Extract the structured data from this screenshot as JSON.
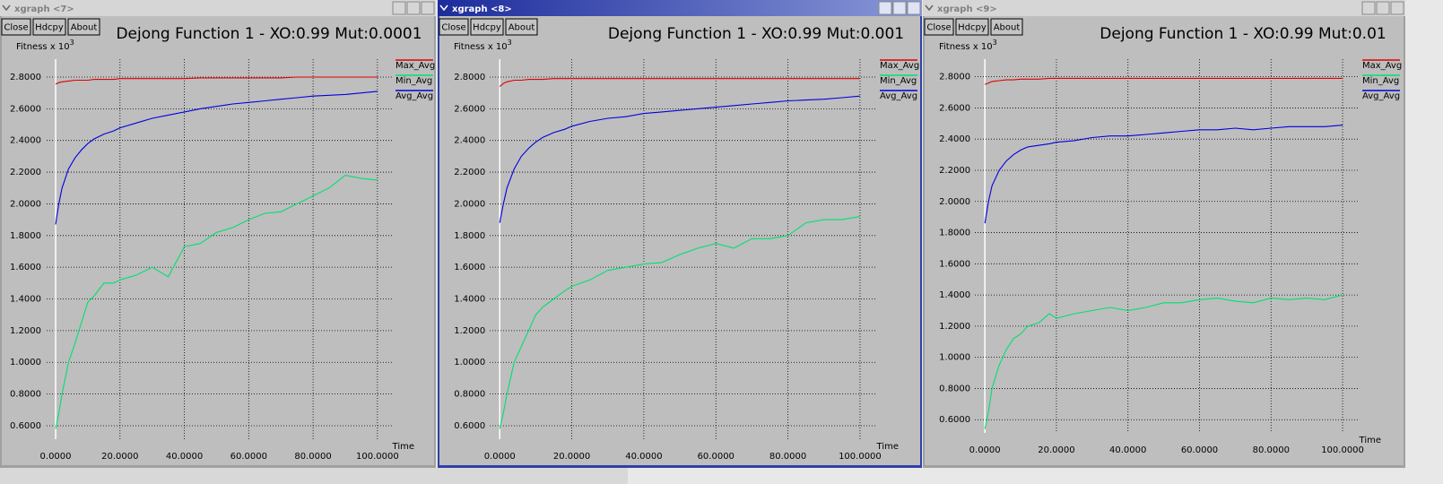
{
  "windows": [
    {
      "title": "xgraph <7>",
      "buttons": [
        "Close",
        "Hdcpy",
        "About"
      ]
    },
    {
      "title": "xgraph <8>",
      "buttons": [
        "Close",
        "Hdcpy",
        "About"
      ]
    },
    {
      "title": "xgraph <9>",
      "buttons": [
        "Close",
        "Hdcpy",
        "About"
      ]
    }
  ],
  "chart_data": [
    {
      "type": "line",
      "title": "Dejong Function 1 - XO:0.99 Mut:0.0001",
      "y_label": "Fitness x 10",
      "y_label_exponent": "3",
      "x_label": "Time",
      "x": [
        0,
        1,
        2,
        4,
        6,
        8,
        10,
        12,
        15,
        18,
        20,
        25,
        30,
        35,
        40,
        45,
        50,
        55,
        60,
        65,
        70,
        75,
        80,
        85,
        90,
        95,
        100
      ],
      "series": [
        {
          "name": "Max_Avg",
          "color": "#e00000",
          "values": [
            2.755,
            2.765,
            2.77,
            2.775,
            2.78,
            2.78,
            2.78,
            2.785,
            2.785,
            2.785,
            2.79,
            2.79,
            2.79,
            2.79,
            2.79,
            2.795,
            2.795,
            2.795,
            2.795,
            2.795,
            2.795,
            2.8,
            2.8,
            2.8,
            2.8,
            2.8,
            2.8
          ]
        },
        {
          "name": "Min_Avg",
          "color": "#00e070",
          "values": [
            0.58,
            0.68,
            0.8,
            1.0,
            1.12,
            1.25,
            1.38,
            1.42,
            1.5,
            1.5,
            1.52,
            1.55,
            1.6,
            1.54,
            1.73,
            1.75,
            1.82,
            1.85,
            1.9,
            1.94,
            1.95,
            2.0,
            2.05,
            2.1,
            2.18,
            2.16,
            2.15
          ]
        },
        {
          "name": "Avg_Avg",
          "color": "#0000e0",
          "values": [
            1.87,
            2.0,
            2.1,
            2.22,
            2.29,
            2.34,
            2.38,
            2.41,
            2.44,
            2.46,
            2.48,
            2.51,
            2.54,
            2.56,
            2.58,
            2.6,
            2.615,
            2.63,
            2.64,
            2.65,
            2.66,
            2.67,
            2.68,
            2.685,
            2.69,
            2.7,
            2.71
          ]
        }
      ],
      "xlim": [
        -2.8,
        104.5
      ],
      "ylim": [
        0.515,
        2.913
      ],
      "xticks": [
        {
          "value": 0,
          "label": "0.0000"
        },
        {
          "value": 20,
          "label": "20.0000"
        },
        {
          "value": 40,
          "label": "40.0000"
        },
        {
          "value": 60,
          "label": "60.0000"
        },
        {
          "value": 80,
          "label": "80.0000"
        },
        {
          "value": 100,
          "label": "100.0000"
        }
      ],
      "yticks": [
        {
          "value": 0.6,
          "label": "0.6000"
        },
        {
          "value": 0.8,
          "label": "0.8000"
        },
        {
          "value": 1.0,
          "label": "1.0000"
        },
        {
          "value": 1.2,
          "label": "1.2000"
        },
        {
          "value": 1.4,
          "label": "1.4000"
        },
        {
          "value": 1.6,
          "label": "1.6000"
        },
        {
          "value": 1.8,
          "label": "1.8000"
        },
        {
          "value": 2.0,
          "label": "2.0000"
        },
        {
          "value": 2.2,
          "label": "2.2000"
        },
        {
          "value": 2.4,
          "label": "2.4000"
        },
        {
          "value": 2.6,
          "label": "2.6000"
        },
        {
          "value": 2.8,
          "label": "2.8000"
        }
      ],
      "grid": true,
      "legend": "right"
    },
    {
      "type": "line",
      "title": "Dejong Function 1 - XO:0.99 Mut:0.001",
      "y_label": "Fitness x 10",
      "y_label_exponent": "3",
      "x_label": "Time",
      "x": [
        0,
        1,
        2,
        4,
        6,
        8,
        10,
        12,
        15,
        18,
        20,
        25,
        30,
        35,
        40,
        45,
        50,
        55,
        60,
        65,
        70,
        75,
        80,
        85,
        90,
        95,
        100
      ],
      "series": [
        {
          "name": "Max_Avg",
          "color": "#e00000",
          "values": [
            2.74,
            2.76,
            2.77,
            2.78,
            2.78,
            2.785,
            2.785,
            2.785,
            2.79,
            2.79,
            2.79,
            2.79,
            2.79,
            2.79,
            2.79,
            2.79,
            2.79,
            2.79,
            2.79,
            2.79,
            2.79,
            2.79,
            2.79,
            2.79,
            2.79,
            2.79,
            2.79
          ]
        },
        {
          "name": "Min_Avg",
          "color": "#00e070",
          "values": [
            0.58,
            0.68,
            0.8,
            1.0,
            1.1,
            1.2,
            1.3,
            1.35,
            1.4,
            1.45,
            1.48,
            1.52,
            1.58,
            1.6,
            1.62,
            1.63,
            1.68,
            1.72,
            1.75,
            1.72,
            1.78,
            1.78,
            1.8,
            1.88,
            1.9,
            1.9,
            1.92
          ]
        },
        {
          "name": "Avg_Avg",
          "color": "#0000e0",
          "values": [
            1.88,
            2.0,
            2.1,
            2.22,
            2.3,
            2.35,
            2.39,
            2.42,
            2.45,
            2.47,
            2.49,
            2.52,
            2.54,
            2.55,
            2.57,
            2.58,
            2.59,
            2.6,
            2.61,
            2.62,
            2.63,
            2.64,
            2.65,
            2.655,
            2.66,
            2.67,
            2.68
          ]
        }
      ],
      "xlim": [
        -2.8,
        104.5
      ],
      "ylim": [
        0.515,
        2.913
      ],
      "xticks": [
        {
          "value": 0,
          "label": "0.0000"
        },
        {
          "value": 20,
          "label": "20.0000"
        },
        {
          "value": 40,
          "label": "40.0000"
        },
        {
          "value": 60,
          "label": "60.0000"
        },
        {
          "value": 80,
          "label": "80.0000"
        },
        {
          "value": 100,
          "label": "100.0000"
        }
      ],
      "yticks": [
        {
          "value": 0.6,
          "label": "0.6000"
        },
        {
          "value": 0.8,
          "label": "0.8000"
        },
        {
          "value": 1.0,
          "label": "1.0000"
        },
        {
          "value": 1.2,
          "label": "1.2000"
        },
        {
          "value": 1.4,
          "label": "1.4000"
        },
        {
          "value": 1.6,
          "label": "1.6000"
        },
        {
          "value": 1.8,
          "label": "1.8000"
        },
        {
          "value": 2.0,
          "label": "2.0000"
        },
        {
          "value": 2.2,
          "label": "2.2000"
        },
        {
          "value": 2.4,
          "label": "2.4000"
        },
        {
          "value": 2.6,
          "label": "2.6000"
        },
        {
          "value": 2.8,
          "label": "2.8000"
        }
      ],
      "grid": true,
      "legend": "right"
    },
    {
      "type": "line",
      "title": "Dejong Function 1 - XO:0.99 Mut:0.01",
      "y_label": "Fitness x 10",
      "y_label_exponent": "3",
      "x_label": "Time",
      "x": [
        0,
        1,
        2,
        4,
        6,
        8,
        10,
        12,
        15,
        18,
        20,
        25,
        30,
        35,
        40,
        45,
        50,
        55,
        60,
        65,
        70,
        75,
        80,
        85,
        90,
        95,
        100
      ],
      "series": [
        {
          "name": "Max_Avg",
          "color": "#e00000",
          "values": [
            2.75,
            2.76,
            2.77,
            2.775,
            2.78,
            2.78,
            2.785,
            2.785,
            2.785,
            2.79,
            2.79,
            2.79,
            2.79,
            2.79,
            2.79,
            2.79,
            2.79,
            2.79,
            2.79,
            2.79,
            2.79,
            2.79,
            2.79,
            2.79,
            2.79,
            2.79,
            2.79
          ]
        },
        {
          "name": "Min_Avg",
          "color": "#00e070",
          "values": [
            0.54,
            0.65,
            0.8,
            0.95,
            1.05,
            1.12,
            1.15,
            1.2,
            1.22,
            1.28,
            1.25,
            1.28,
            1.3,
            1.32,
            1.3,
            1.32,
            1.35,
            1.35,
            1.37,
            1.38,
            1.36,
            1.35,
            1.38,
            1.37,
            1.38,
            1.37,
            1.4
          ]
        },
        {
          "name": "Avg_Avg",
          "color": "#0000e0",
          "values": [
            1.86,
            2.0,
            2.1,
            2.2,
            2.26,
            2.3,
            2.33,
            2.35,
            2.36,
            2.37,
            2.38,
            2.39,
            2.41,
            2.42,
            2.42,
            2.43,
            2.44,
            2.45,
            2.46,
            2.46,
            2.47,
            2.46,
            2.47,
            2.48,
            2.48,
            2.48,
            2.49
          ]
        }
      ],
      "xlim": [
        -2.8,
        104.5
      ],
      "ylim": [
        0.515,
        2.913
      ],
      "xticks": [
        {
          "value": 0,
          "label": "0.0000"
        },
        {
          "value": 20,
          "label": "20.0000"
        },
        {
          "value": 40,
          "label": "40.0000"
        },
        {
          "value": 60,
          "label": "60.0000"
        },
        {
          "value": 80,
          "label": "80.0000"
        },
        {
          "value": 100,
          "label": "100.0000"
        }
      ],
      "yticks": [
        {
          "value": 0.6,
          "label": "0.6000"
        },
        {
          "value": 0.8,
          "label": "0.8000"
        },
        {
          "value": 1.0,
          "label": "1.0000"
        },
        {
          "value": 1.2,
          "label": "1.2000"
        },
        {
          "value": 1.4,
          "label": "1.4000"
        },
        {
          "value": 1.6,
          "label": "1.6000"
        },
        {
          "value": 1.8,
          "label": "1.8000"
        },
        {
          "value": 2.0,
          "label": "2.0000"
        },
        {
          "value": 2.2,
          "label": "2.2000"
        },
        {
          "value": 2.4,
          "label": "2.4000"
        },
        {
          "value": 2.6,
          "label": "2.6000"
        },
        {
          "value": 2.8,
          "label": "2.8000"
        }
      ],
      "grid": true,
      "legend": "right"
    }
  ]
}
